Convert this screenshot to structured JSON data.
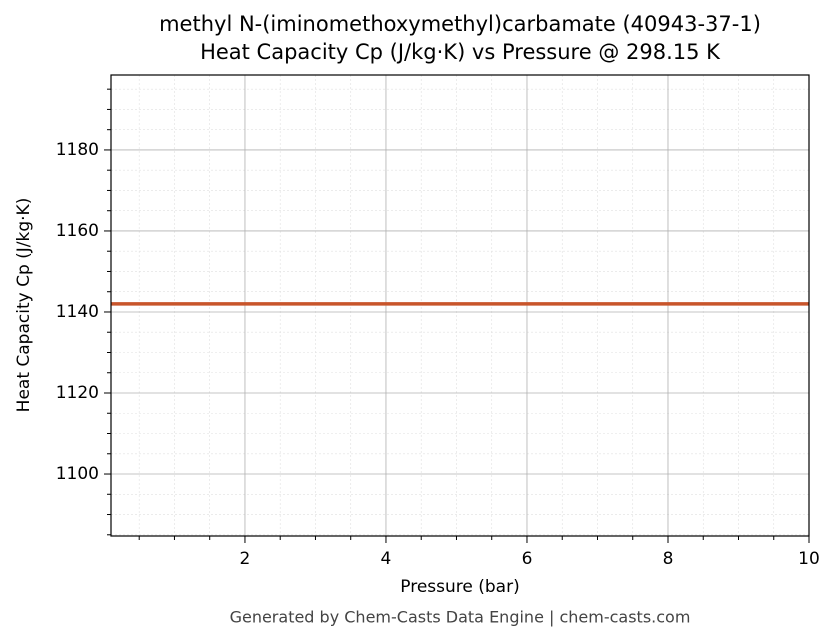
{
  "chart_data": {
    "type": "line",
    "title": "methyl N-(iminomethoxymethyl)carbamate (40943-37-1)",
    "subtitle": "Heat Capacity Cp (J/kg·K) vs Pressure @ 298.15 K",
    "x_label": "Pressure (bar)",
    "y_label": "Heat Capacity Cp (J/kg·K)",
    "footer": "Generated by Chem-Casts Data Engine | chem-casts.com",
    "x": [
      0.1,
      10
    ],
    "series": [
      {
        "name": "Cp",
        "color": "#c8552b",
        "values": [
          1142,
          1142
        ]
      }
    ],
    "xlim": [
      0.1,
      10
    ],
    "xticks": [
      2,
      4,
      6,
      8,
      10
    ],
    "ylim": [
      1084.7,
      1198.5
    ],
    "yticks": [
      1100,
      1120,
      1140,
      1160,
      1180
    ],
    "grid": true
  }
}
